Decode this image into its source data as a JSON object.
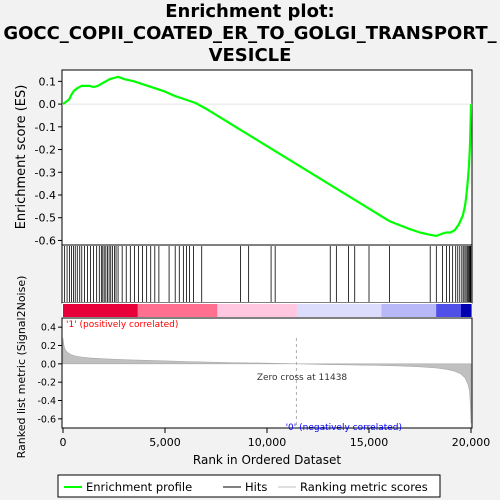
{
  "title_lines": [
    "Enrichment plot:",
    "GOCC_COPII_COATED_ER_TO_GOLGI_TRANSPORT_",
    "VESICLE"
  ],
  "chart_data": {
    "type": "line",
    "top_panel": {
      "ylabel": "Enrichment score (ES)",
      "yticks": [
        0.1,
        0.0,
        -0.1,
        -0.2,
        -0.3,
        -0.4,
        -0.5,
        -0.6
      ],
      "ytick_labels": [
        "0.1",
        "0.0",
        "-0.1",
        "-0.2",
        "-0.3",
        "-0.4",
        "-0.5",
        "-0.6"
      ],
      "ylim": [
        -0.62,
        0.15
      ],
      "series": [
        {
          "name": "Enrichment profile",
          "color": "#00ff00",
          "x": [
            0,
            150,
            300,
            400,
            550,
            700,
            900,
            1100,
            1300,
            1500,
            1700,
            1900,
            2100,
            2300,
            2500,
            2700,
            3000,
            3500,
            4000,
            4500,
            5000,
            5500,
            6000,
            6500,
            7000,
            8000,
            9000,
            10000,
            11000,
            12000,
            13000,
            14000,
            15000,
            16000,
            17000,
            17500,
            18000,
            18300,
            18600,
            18800,
            19000,
            19200,
            19400,
            19500,
            19600,
            19700,
            19750,
            19800,
            19850,
            19900,
            19950,
            19980,
            20000
          ],
          "y": [
            0.0,
            0.01,
            0.02,
            0.04,
            0.06,
            0.07,
            0.08,
            0.08,
            0.08,
            0.075,
            0.08,
            0.09,
            0.1,
            0.11,
            0.115,
            0.12,
            0.11,
            0.1,
            0.085,
            0.07,
            0.055,
            0.035,
            0.02,
            0.005,
            -0.02,
            -0.075,
            -0.13,
            -0.185,
            -0.24,
            -0.295,
            -0.35,
            -0.405,
            -0.46,
            -0.515,
            -0.55,
            -0.565,
            -0.575,
            -0.58,
            -0.57,
            -0.565,
            -0.565,
            -0.555,
            -0.53,
            -0.51,
            -0.49,
            -0.45,
            -0.42,
            -0.38,
            -0.33,
            -0.27,
            -0.18,
            -0.08,
            0.0
          ]
        }
      ]
    },
    "hits": {
      "name": "Hits",
      "x": [
        80,
        200,
        320,
        420,
        520,
        600,
        700,
        820,
        920,
        1050,
        1200,
        1350,
        1500,
        1650,
        1780,
        1880,
        1950,
        2020,
        2100,
        2180,
        2260,
        2340,
        2420,
        2520,
        2600,
        2700,
        2900,
        3100,
        3300,
        3500,
        3700,
        3900,
        4100,
        4300,
        4500,
        4700,
        5200,
        5500,
        5700,
        5900,
        6050,
        6200,
        6400,
        6800,
        8700,
        9100,
        10200,
        10400,
        13100,
        13400,
        14000,
        14300,
        15000,
        16000,
        18000,
        18300,
        18600,
        18800,
        18950,
        19100,
        19250,
        19350,
        19450,
        19550,
        19620,
        19700,
        19760,
        19820,
        19870,
        19920,
        19960,
        19990
      ]
    },
    "ranking": {
      "name": "Ranking metric scores",
      "ylabel": "Ranked list metric (Signal2Noise)",
      "yticks": [
        0.4,
        0.2,
        0.0,
        -0.2,
        -0.4,
        -0.6
      ],
      "ytick_labels": [
        "0.4",
        "0.2",
        "0.0",
        "-0.2",
        "-0.4",
        "-0.6"
      ],
      "ylim": [
        -0.7,
        0.5
      ],
      "x": [
        0,
        30,
        80,
        150,
        250,
        400,
        600,
        900,
        1300,
        2000,
        3000,
        4500,
        6000,
        8000,
        10000,
        11438,
        13000,
        15000,
        16500,
        17500,
        18300,
        18800,
        19200,
        19500,
        19700,
        19850,
        19930,
        19970,
        20000
      ],
      "y": [
        0.28,
        0.22,
        0.17,
        0.14,
        0.12,
        0.1,
        0.085,
        0.075,
        0.065,
        0.055,
        0.045,
        0.035,
        0.025,
        0.015,
        0.007,
        0.0,
        -0.008,
        -0.015,
        -0.022,
        -0.032,
        -0.045,
        -0.06,
        -0.08,
        -0.11,
        -0.15,
        -0.22,
        -0.3,
        -0.45,
        -0.65
      ],
      "zero_cross_label": "Zero cross at 11438",
      "zero_cross": 11438
    },
    "pos_label": "'1' (positively correlated)",
    "neg_label": "'0' (negatively correlated)",
    "xlabel": "Rank in Ordered Dataset",
    "xlim": [
      0,
      20000
    ],
    "xticks": [
      0,
      5000,
      10000,
      15000,
      20000
    ],
    "xtick_labels": [
      "0",
      "5,000",
      "10,000",
      "15,000",
      "20,000"
    ],
    "legend": {
      "placement": "bottom",
      "items": [
        "Enrichment profile",
        "Hits",
        "Ranking metric scores"
      ]
    }
  }
}
